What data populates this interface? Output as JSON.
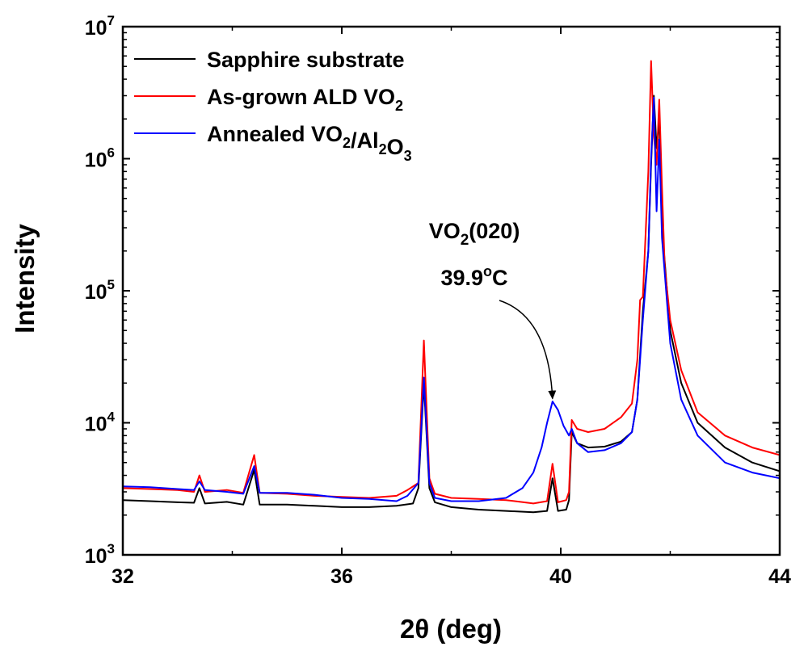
{
  "chart_data": {
    "type": "line",
    "title": "",
    "xlabel": "2θ (deg)",
    "ylabel": "Intensity",
    "xlim": [
      32,
      44
    ],
    "ylim": [
      1000,
      10000000
    ],
    "yscale": "log",
    "x_ticks": [
      {
        "value": 32,
        "label": "32"
      },
      {
        "value": 36,
        "label": "36"
      },
      {
        "value": 40,
        "label": "40"
      },
      {
        "value": 44,
        "label": "44"
      }
    ],
    "y_ticks": [
      {
        "value": 1000,
        "base": "10",
        "exp": "3"
      },
      {
        "value": 10000,
        "base": "10",
        "exp": "4"
      },
      {
        "value": 100000,
        "base": "10",
        "exp": "5"
      },
      {
        "value": 1000000,
        "base": "10",
        "exp": "6"
      },
      {
        "value": 10000000,
        "base": "10",
        "exp": "7"
      }
    ],
    "legend": {
      "position": "top-left",
      "entries": [
        {
          "series": "sapphire",
          "parts": [
            {
              "text": "Sapphire substrate",
              "sub": ""
            }
          ]
        },
        {
          "series": "asgrown",
          "parts": [
            {
              "text": "As-grown ALD VO",
              "sub": "2"
            }
          ]
        },
        {
          "series": "annealed",
          "parts": [
            {
              "text": "Annealed VO",
              "sub": "2"
            },
            {
              "text": "/Al",
              "sub": "2"
            },
            {
              "text": "O",
              "sub": "3"
            }
          ]
        }
      ]
    },
    "annotation": {
      "label_main": "VO",
      "label_sub": "2",
      "label_rest": "(020)",
      "value_text": "39.9",
      "value_sup": "o",
      "value_unit": "C",
      "target_x": 39.85,
      "target_y": 14000
    },
    "series": [
      {
        "id": "sapphire",
        "name": "Sapphire substrate",
        "color": "#000000",
        "points": [
          [
            32.0,
            2600
          ],
          [
            32.5,
            2550
          ],
          [
            33.0,
            2500
          ],
          [
            33.3,
            2480
          ],
          [
            33.4,
            3200
          ],
          [
            33.5,
            2450
          ],
          [
            33.9,
            2520
          ],
          [
            34.2,
            2400
          ],
          [
            34.4,
            4400
          ],
          [
            34.5,
            2400
          ],
          [
            35.0,
            2400
          ],
          [
            35.5,
            2350
          ],
          [
            36.0,
            2300
          ],
          [
            36.5,
            2300
          ],
          [
            37.0,
            2350
          ],
          [
            37.3,
            2450
          ],
          [
            37.4,
            3200
          ],
          [
            37.5,
            20000
          ],
          [
            37.6,
            3200
          ],
          [
            37.7,
            2500
          ],
          [
            38.0,
            2300
          ],
          [
            38.5,
            2200
          ],
          [
            39.0,
            2150
          ],
          [
            39.5,
            2100
          ],
          [
            39.75,
            2150
          ],
          [
            39.85,
            3800
          ],
          [
            39.95,
            2150
          ],
          [
            40.1,
            2200
          ],
          [
            40.15,
            2600
          ],
          [
            40.2,
            8500
          ],
          [
            40.3,
            7000
          ],
          [
            40.5,
            6500
          ],
          [
            40.8,
            6600
          ],
          [
            41.1,
            7200
          ],
          [
            41.3,
            8500
          ],
          [
            41.4,
            15000
          ],
          [
            41.5,
            70000
          ],
          [
            41.6,
            200000
          ],
          [
            41.65,
            900000
          ],
          [
            41.7,
            3000000
          ],
          [
            41.75,
            1200000
          ],
          [
            41.8,
            2000000
          ],
          [
            41.85,
            300000
          ],
          [
            42.0,
            50000
          ],
          [
            42.2,
            20000
          ],
          [
            42.5,
            10000
          ],
          [
            43.0,
            6500
          ],
          [
            43.5,
            5000
          ],
          [
            44.0,
            4300
          ]
        ]
      },
      {
        "id": "asgrown",
        "name": "As-grown ALD VO2",
        "color": "#ff0000",
        "points": [
          [
            32.0,
            3200
          ],
          [
            32.5,
            3150
          ],
          [
            33.0,
            3100
          ],
          [
            33.3,
            3000
          ],
          [
            33.4,
            4000
          ],
          [
            33.5,
            3000
          ],
          [
            33.9,
            3100
          ],
          [
            34.2,
            2950
          ],
          [
            34.4,
            5700
          ],
          [
            34.5,
            2950
          ],
          [
            35.0,
            2900
          ],
          [
            35.5,
            2800
          ],
          [
            36.0,
            2750
          ],
          [
            36.5,
            2700
          ],
          [
            37.0,
            2800
          ],
          [
            37.2,
            3100
          ],
          [
            37.4,
            3500
          ],
          [
            37.5,
            42000
          ],
          [
            37.6,
            3800
          ],
          [
            37.7,
            2900
          ],
          [
            38.0,
            2700
          ],
          [
            38.5,
            2650
          ],
          [
            39.0,
            2600
          ],
          [
            39.5,
            2450
          ],
          [
            39.75,
            2550
          ],
          [
            39.85,
            4900
          ],
          [
            39.95,
            2500
          ],
          [
            40.1,
            2600
          ],
          [
            40.15,
            3000
          ],
          [
            40.2,
            10500
          ],
          [
            40.3,
            9000
          ],
          [
            40.5,
            8500
          ],
          [
            40.8,
            9000
          ],
          [
            41.1,
            11000
          ],
          [
            41.3,
            14000
          ],
          [
            41.4,
            30000
          ],
          [
            41.45,
            85000
          ],
          [
            41.5,
            90000
          ],
          [
            41.6,
            800000
          ],
          [
            41.65,
            5500000
          ],
          [
            41.7,
            1500000
          ],
          [
            41.75,
            900000
          ],
          [
            41.8,
            2800000
          ],
          [
            41.85,
            600000
          ],
          [
            41.9,
            150000
          ],
          [
            42.0,
            60000
          ],
          [
            42.2,
            25000
          ],
          [
            42.5,
            12000
          ],
          [
            43.0,
            8000
          ],
          [
            43.5,
            6500
          ],
          [
            44.0,
            5700
          ]
        ]
      },
      {
        "id": "annealed",
        "name": "Annealed VO2/Al2O3",
        "color": "#0000ff",
        "points": [
          [
            32.0,
            3300
          ],
          [
            32.5,
            3250
          ],
          [
            33.0,
            3150
          ],
          [
            33.3,
            3100
          ],
          [
            33.4,
            3600
          ],
          [
            33.5,
            3100
          ],
          [
            33.9,
            3000
          ],
          [
            34.2,
            2900
          ],
          [
            34.4,
            4700
          ],
          [
            34.5,
            2950
          ],
          [
            35.0,
            2950
          ],
          [
            35.5,
            2850
          ],
          [
            36.0,
            2700
          ],
          [
            36.5,
            2650
          ],
          [
            37.0,
            2550
          ],
          [
            37.2,
            2800
          ],
          [
            37.4,
            3500
          ],
          [
            37.5,
            22000
          ],
          [
            37.6,
            3500
          ],
          [
            37.7,
            2700
          ],
          [
            38.0,
            2550
          ],
          [
            38.5,
            2550
          ],
          [
            39.0,
            2700
          ],
          [
            39.3,
            3200
          ],
          [
            39.5,
            4200
          ],
          [
            39.65,
            6500
          ],
          [
            39.75,
            10000
          ],
          [
            39.85,
            14500
          ],
          [
            39.95,
            12500
          ],
          [
            40.05,
            9500
          ],
          [
            40.15,
            8000
          ],
          [
            40.2,
            9000
          ],
          [
            40.3,
            7000
          ],
          [
            40.5,
            6000
          ],
          [
            40.8,
            6200
          ],
          [
            41.1,
            7000
          ],
          [
            41.3,
            8500
          ],
          [
            41.4,
            15000
          ],
          [
            41.5,
            60000
          ],
          [
            41.6,
            200000
          ],
          [
            41.65,
            1000000
          ],
          [
            41.7,
            2900000
          ],
          [
            41.75,
            400000
          ],
          [
            41.8,
            1400000
          ],
          [
            41.85,
            250000
          ],
          [
            42.0,
            40000
          ],
          [
            42.2,
            15000
          ],
          [
            42.5,
            8000
          ],
          [
            43.0,
            5000
          ],
          [
            43.5,
            4200
          ],
          [
            44.0,
            3800
          ]
        ]
      }
    ]
  }
}
